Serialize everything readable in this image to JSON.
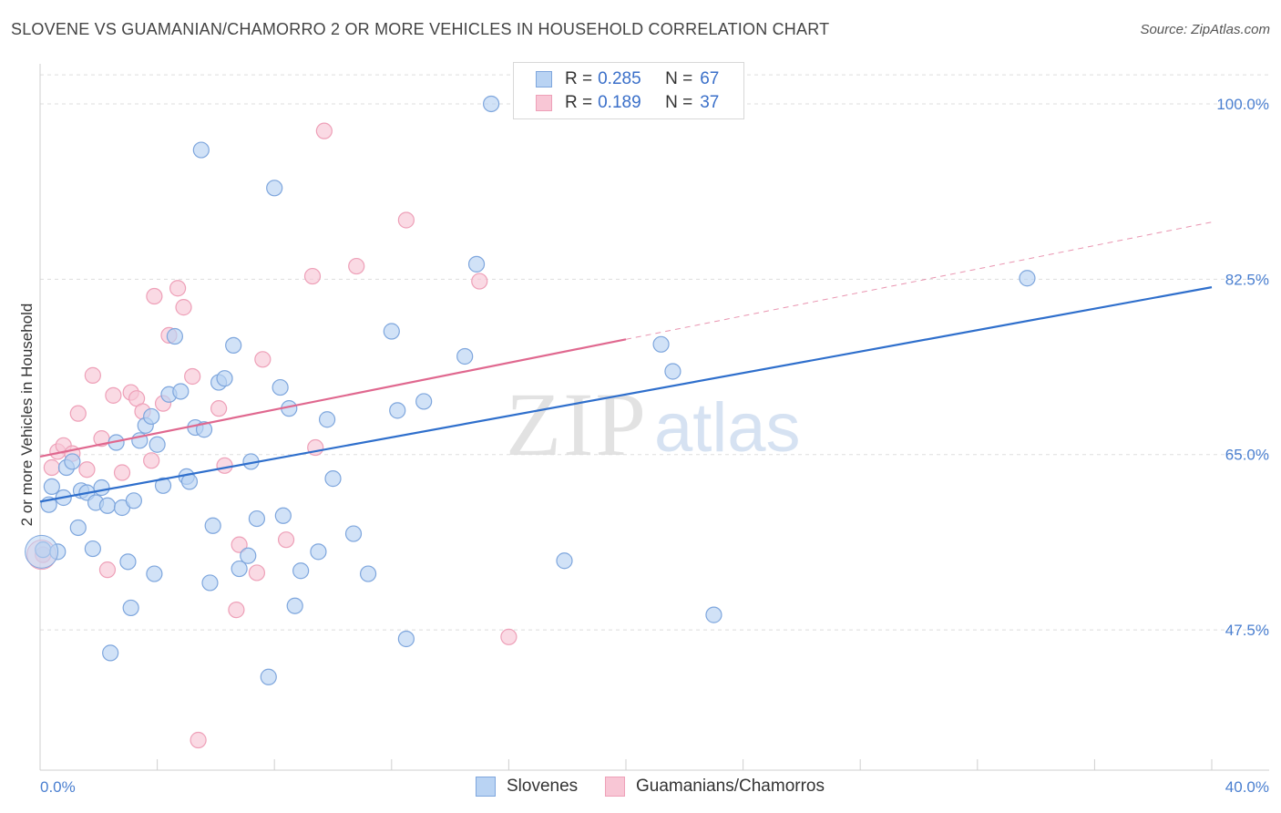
{
  "title": "SLOVENE VS GUAMANIAN/CHAMORRO 2 OR MORE VEHICLES IN HOUSEHOLD CORRELATION CHART",
  "source": "Source: ZipAtlas.com",
  "watermark": {
    "part1": "ZIP",
    "part2": "atlas"
  },
  "colors": {
    "blue_fill": "#b9d3f3",
    "blue_stroke": "#7ea6dd",
    "blue_line": "#2f6fcc",
    "pink_fill": "#f8c6d5",
    "pink_stroke": "#eea0b8",
    "pink_line": "#e0688f",
    "tick": "#4a7fd0",
    "grid": "#dddddd"
  },
  "legend": [
    {
      "r_label": "R =",
      "r_value": "0.285",
      "n_label": "N =",
      "n_value": "67"
    },
    {
      "r_label": "R =",
      "r_value": "0.189",
      "n_label": "N =",
      "n_value": "37"
    }
  ],
  "bottom_legend": [
    "Slovenes",
    "Guamanians/Chamorros"
  ],
  "chart_data": {
    "type": "scatter",
    "title": "SLOVENE VS GUAMANIAN/CHAMORRO 2 OR MORE VEHICLES IN HOUSEHOLD CORRELATION CHART",
    "xlabel": "",
    "ylabel": "2 or more Vehicles in Household",
    "xlim": [
      0,
      40
    ],
    "ylim": [
      33.5,
      104
    ],
    "x_tick_labels": [
      "0.0%",
      "40.0%"
    ],
    "y_ticks": [
      47.5,
      65.0,
      82.5,
      100.0
    ],
    "y_tick_labels": [
      "47.5%",
      "65.0%",
      "82.5%",
      "100.0%"
    ],
    "grid": true,
    "legend_position": "top-center",
    "series": [
      {
        "name": "Slovenes",
        "trend": {
          "x0": 0,
          "y0": 60.3,
          "x1": 40,
          "y1": 81.7,
          "dashed_to": null
        },
        "points": [
          [
            0.1,
            55.5
          ],
          [
            0.3,
            60
          ],
          [
            0.4,
            61.8
          ],
          [
            0.6,
            55.3
          ],
          [
            0.8,
            60.7
          ],
          [
            0.9,
            63.7
          ],
          [
            1.1,
            64.3
          ],
          [
            1.3,
            57.7
          ],
          [
            1.4,
            61.4
          ],
          [
            1.6,
            61.2
          ],
          [
            1.8,
            55.6
          ],
          [
            1.9,
            60.2
          ],
          [
            2.1,
            61.7
          ],
          [
            2.3,
            59.9
          ],
          [
            2.4,
            45.2
          ],
          [
            2.6,
            66.2
          ],
          [
            2.8,
            59.7
          ],
          [
            3.0,
            54.3
          ],
          [
            3.1,
            49.7
          ],
          [
            3.2,
            60.4
          ],
          [
            3.4,
            66.4
          ],
          [
            3.6,
            67.9
          ],
          [
            3.8,
            68.8
          ],
          [
            3.9,
            53.1
          ],
          [
            4.0,
            66.0
          ],
          [
            4.2,
            61.9
          ],
          [
            4.4,
            71.0
          ],
          [
            4.6,
            76.8
          ],
          [
            4.8,
            71.3
          ],
          [
            5.0,
            62.8
          ],
          [
            5.1,
            62.3
          ],
          [
            5.3,
            67.7
          ],
          [
            5.5,
            95.4
          ],
          [
            5.6,
            67.5
          ],
          [
            5.8,
            52.2
          ],
          [
            5.9,
            57.9
          ],
          [
            6.1,
            72.2
          ],
          [
            6.3,
            72.6
          ],
          [
            6.6,
            75.9
          ],
          [
            6.8,
            53.6
          ],
          [
            7.1,
            54.9
          ],
          [
            7.2,
            64.3
          ],
          [
            7.4,
            58.6
          ],
          [
            7.8,
            42.8
          ],
          [
            8.0,
            91.6
          ],
          [
            8.2,
            71.7
          ],
          [
            8.3,
            58.9
          ],
          [
            8.5,
            69.6
          ],
          [
            8.7,
            49.9
          ],
          [
            8.9,
            53.4
          ],
          [
            9.5,
            55.3
          ],
          [
            9.8,
            68.5
          ],
          [
            10.0,
            62.6
          ],
          [
            10.7,
            57.1
          ],
          [
            11.2,
            53.1
          ],
          [
            12.0,
            77.3
          ],
          [
            12.5,
            46.6
          ],
          [
            12.2,
            69.4
          ],
          [
            13.1,
            70.3
          ],
          [
            14.5,
            74.8
          ],
          [
            14.9,
            84.0
          ],
          [
            15.4,
            100.0
          ],
          [
            17.9,
            54.4
          ],
          [
            21.2,
            76.0
          ],
          [
            21.6,
            73.3
          ],
          [
            23.0,
            49.0
          ],
          [
            33.7,
            82.6
          ]
        ]
      },
      {
        "name": "Guamanians/Chamorros",
        "trend": {
          "x0": 0,
          "y0": 64.8,
          "x1": 20,
          "y1": 76.5,
          "dashed_to": [
            40,
            88.2
          ]
        },
        "points": [
          [
            0.1,
            55.0
          ],
          [
            0.4,
            63.7
          ],
          [
            0.6,
            65.3
          ],
          [
            0.8,
            65.9
          ],
          [
            1.1,
            65.1
          ],
          [
            1.3,
            69.1
          ],
          [
            1.6,
            63.5
          ],
          [
            1.8,
            72.9
          ],
          [
            2.1,
            66.6
          ],
          [
            2.3,
            53.5
          ],
          [
            2.5,
            70.9
          ],
          [
            2.8,
            63.2
          ],
          [
            3.1,
            71.2
          ],
          [
            3.3,
            70.6
          ],
          [
            3.5,
            69.3
          ],
          [
            3.8,
            64.4
          ],
          [
            3.9,
            80.8
          ],
          [
            4.2,
            70.1
          ],
          [
            4.4,
            76.9
          ],
          [
            4.7,
            81.6
          ],
          [
            4.9,
            79.7
          ],
          [
            5.2,
            72.8
          ],
          [
            5.4,
            36.5
          ],
          [
            6.1,
            69.6
          ],
          [
            6.3,
            63.9
          ],
          [
            6.7,
            49.5
          ],
          [
            6.8,
            56.0
          ],
          [
            7.4,
            53.2
          ],
          [
            7.6,
            74.5
          ],
          [
            8.4,
            56.5
          ],
          [
            9.3,
            82.8
          ],
          [
            9.4,
            65.7
          ],
          [
            9.7,
            97.3
          ],
          [
            10.8,
            83.8
          ],
          [
            12.5,
            88.4
          ],
          [
            15.0,
            82.3
          ],
          [
            16.0,
            46.8
          ]
        ]
      }
    ]
  }
}
